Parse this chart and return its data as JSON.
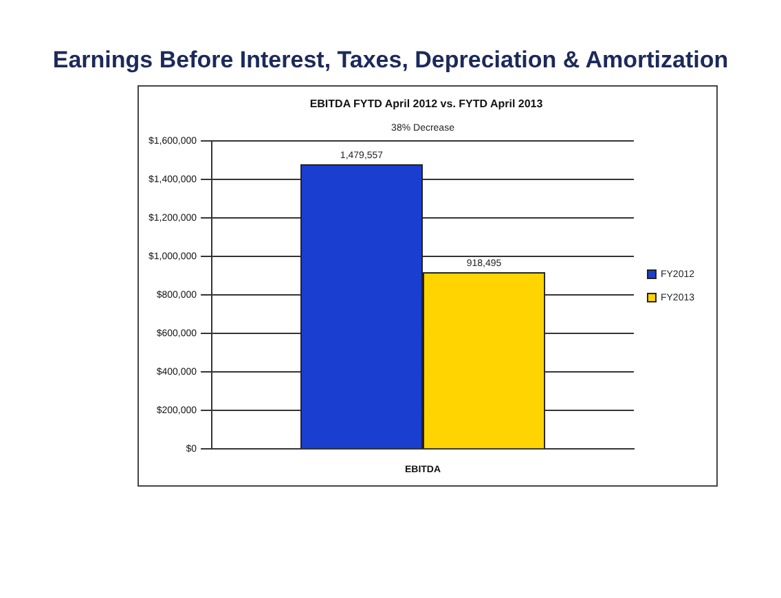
{
  "chart_data": {
    "type": "bar",
    "title": "Earnings Before Interest, Taxes, Depreciation & Amortization",
    "subtitle": "EBITDA FYTD April 2012 vs. FYTD April 2013",
    "annotations": [
      "38% Decrease"
    ],
    "categories": [
      "EBITDA"
    ],
    "series": [
      {
        "name": "FY2012",
        "color": "#1a3fd0",
        "values": [
          1479557
        ],
        "value_labels": [
          "1,479,557"
        ]
      },
      {
        "name": "FY2013",
        "color": "#ffd400",
        "values": [
          918495
        ],
        "value_labels": [
          "918,495"
        ]
      }
    ],
    "ylim": [
      0,
      1600000
    ],
    "yticks": [
      {
        "value": 0,
        "label": "$0"
      },
      {
        "value": 200000,
        "label": "$200,000"
      },
      {
        "value": 400000,
        "label": "$400,000"
      },
      {
        "value": 600000,
        "label": "$600,000"
      },
      {
        "value": 800000,
        "label": "$800,000"
      },
      {
        "value": 1000000,
        "label": "$1,000,000"
      },
      {
        "value": 1200000,
        "label": "$1,200,000"
      },
      {
        "value": 1400000,
        "label": "$1,400,000"
      },
      {
        "value": 1600000,
        "label": "$1,600,000"
      }
    ],
    "grid": "y",
    "legend": "right"
  }
}
